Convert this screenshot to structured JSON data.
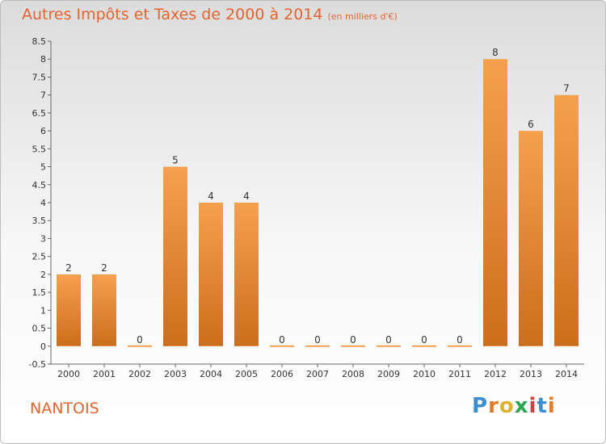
{
  "header": {
    "title": "Autres Impôts et Taxes de 2000 à 2014",
    "unit": "(en milliers d'€)"
  },
  "footer": {
    "city": "NANTOIS",
    "brand": "Proxiti"
  },
  "colors": {
    "bar_light": "#f5a04d",
    "bar_dark": "#cc6e1c",
    "title": "#e4642e"
  },
  "chart_data": {
    "type": "bar",
    "categories": [
      "2000",
      "2001",
      "2002",
      "2003",
      "2004",
      "2005",
      "2006",
      "2007",
      "2008",
      "2009",
      "2010",
      "2011",
      "2012",
      "2013",
      "2014"
    ],
    "values": [
      2,
      2,
      0,
      5,
      4,
      4,
      0,
      0,
      0,
      0,
      0,
      0,
      8,
      6,
      7
    ],
    "data_labels": [
      "2",
      "2",
      "0",
      "5",
      "4",
      "4",
      "0",
      "0",
      "0",
      "0",
      "0",
      "0",
      "8",
      "6",
      "7"
    ],
    "ylim": [
      -0.5,
      8.5
    ],
    "yticks": [
      "8.5",
      "8",
      "7.5",
      "7",
      "6.5",
      "6",
      "5.5",
      "5",
      "4.5",
      "4",
      "3.5",
      "3",
      "2.5",
      "2",
      "1.5",
      "1",
      "0.5",
      "0",
      "-0.5"
    ],
    "ytick_values": [
      8.5,
      8,
      7.5,
      7,
      6.5,
      6,
      5.5,
      5,
      4.5,
      4,
      3.5,
      3,
      2.5,
      2,
      1.5,
      1,
      0.5,
      0,
      -0.5
    ],
    "grid": false
  }
}
